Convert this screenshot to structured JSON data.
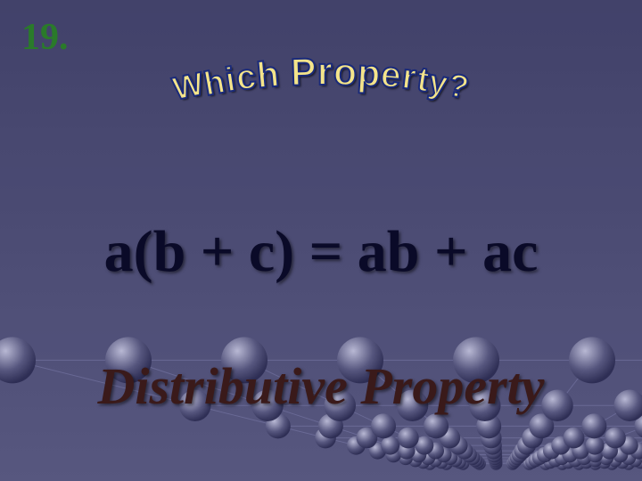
{
  "slide": {
    "number_label": "19.",
    "number_color": "#2a7a2a",
    "heading_text": "Which Property?",
    "heading_fill": "#f4e48a",
    "heading_stroke": "#1a2a7a",
    "heading_fontsize_max": 44,
    "heading_fontsize_min": 30,
    "equation": "a(b + c) = ab + ac",
    "equation_color": "#0a0a28",
    "answer": "Distributive Property",
    "answer_color": "#3a1a1a",
    "background": {
      "base_color": "#5a5a82",
      "dark_color": "#42426a",
      "light_color": "#7a7aa0",
      "grid_line": "#8888b8",
      "node_light": "#cfcfe8",
      "node_dark": "#2a2a50"
    }
  }
}
